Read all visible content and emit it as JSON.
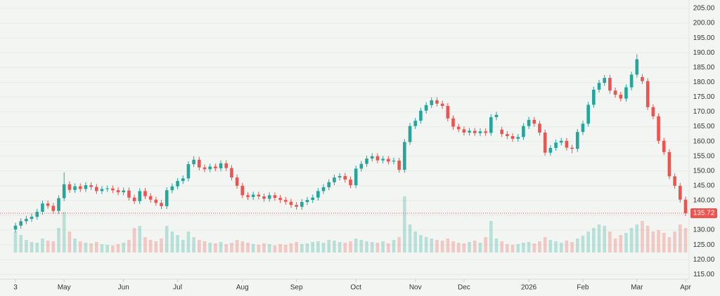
{
  "chart_data": {
    "type": "candlestick",
    "up_color": "#26a69a",
    "down_color": "#ef5350",
    "grid": true,
    "ylim": [
      113.4,
      207.85
    ],
    "yticks": [
      {
        "value": 115,
        "label": "115.00"
      },
      {
        "value": 120,
        "label": "120.00"
      },
      {
        "value": 125,
        "label": "125.00"
      },
      {
        "value": 130,
        "label": "130.00"
      },
      {
        "value": 135,
        "label": "135.00"
      },
      {
        "value": 140,
        "label": "140.00"
      },
      {
        "value": 145,
        "label": "145.00"
      },
      {
        "value": 150,
        "label": "150.00"
      },
      {
        "value": 155,
        "label": "155.00"
      },
      {
        "value": 160,
        "label": "160.00"
      },
      {
        "value": 165,
        "label": "165.00"
      },
      {
        "value": 170,
        "label": "170.00"
      },
      {
        "value": 175,
        "label": "175.00"
      },
      {
        "value": 180,
        "label": "180.00"
      },
      {
        "value": 185,
        "label": "185.00"
      },
      {
        "value": 190,
        "label": "190.00"
      },
      {
        "value": 195,
        "label": "195.00"
      },
      {
        "value": 200,
        "label": "200.00"
      },
      {
        "value": 205,
        "label": "205.00"
      }
    ],
    "vlim": [
      0,
      100
    ],
    "categories": [
      "3",
      null,
      null,
      null,
      null,
      null,
      null,
      null,
      null,
      "May",
      null,
      null,
      null,
      null,
      null,
      null,
      null,
      null,
      null,
      null,
      "Jun",
      null,
      null,
      null,
      null,
      null,
      null,
      null,
      null,
      null,
      "Jul",
      null,
      null,
      null,
      null,
      null,
      null,
      null,
      null,
      null,
      null,
      null,
      "Aug",
      null,
      null,
      null,
      null,
      null,
      null,
      null,
      null,
      null,
      "Sep",
      null,
      null,
      null,
      null,
      null,
      null,
      null,
      null,
      null,
      null,
      "Oct",
      null,
      null,
      null,
      null,
      null,
      null,
      null,
      null,
      null,
      null,
      "Nov",
      null,
      null,
      null,
      null,
      null,
      null,
      null,
      null,
      "Dec",
      null,
      null,
      null,
      null,
      null,
      null,
      null,
      null,
      null,
      null,
      null,
      "2026",
      null,
      null,
      null,
      null,
      null,
      null,
      null,
      null,
      null,
      "Feb",
      null,
      null,
      null,
      null,
      null,
      null,
      null,
      null,
      null,
      "Mar",
      null,
      null,
      null,
      null,
      null,
      null,
      null,
      null,
      "Apr"
    ],
    "candles": [
      [
        130.2,
        132.5,
        129.2,
        131.5
      ],
      [
        131.5,
        134.0,
        130.5,
        133.0
      ],
      [
        133.0,
        134.8,
        132.0,
        133.8
      ],
      [
        133.8,
        135.5,
        132.8,
        134.5
      ],
      [
        134.5,
        137.2,
        133.5,
        136.2
      ],
      [
        136.2,
        140.0,
        135.2,
        139.0
      ],
      [
        139.0,
        140.0,
        137.2,
        138.2
      ],
      [
        138.2,
        139.2,
        135.5,
        136.5
      ],
      [
        136.5,
        141.8,
        135.5,
        140.8
      ],
      [
        140.8,
        149.5,
        139.8,
        145.5
      ],
      [
        145.5,
        146.5,
        142.6,
        143.6
      ],
      [
        143.6,
        145.8,
        142.6,
        144.8
      ],
      [
        144.8,
        145.8,
        142.9,
        143.9
      ],
      [
        143.9,
        146.2,
        142.9,
        145.2
      ],
      [
        145.2,
        146.2,
        143.6,
        144.6
      ],
      [
        144.6,
        145.6,
        142.2,
        143.2
      ],
      [
        143.2,
        144.9,
        142.2,
        143.9
      ],
      [
        143.9,
        145.1,
        142.9,
        144.1
      ],
      [
        144.1,
        145.1,
        142.5,
        143.5
      ],
      [
        143.5,
        144.5,
        141.8,
        142.8
      ],
      [
        142.8,
        144.4,
        141.8,
        143.4
      ],
      [
        143.4,
        144.4,
        140.0,
        141.0
      ],
      [
        141.0,
        142.0,
        138.8,
        139.8
      ],
      [
        139.8,
        144.2,
        138.8,
        143.2
      ],
      [
        143.2,
        144.2,
        140.5,
        141.5
      ],
      [
        141.5,
        142.5,
        139.3,
        140.3
      ],
      [
        140.3,
        141.3,
        138.2,
        139.2
      ],
      [
        139.2,
        140.2,
        137.1,
        138.1
      ],
      [
        138.1,
        144.5,
        137.1,
        143.5
      ],
      [
        143.5,
        145.8,
        142.5,
        144.8
      ],
      [
        144.8,
        147.6,
        143.8,
        146.6
      ],
      [
        146.6,
        148.5,
        145.6,
        147.5
      ],
      [
        147.5,
        153.3,
        146.5,
        152.3
      ],
      [
        152.3,
        155.0,
        151.3,
        153.8
      ],
      [
        153.8,
        154.8,
        150.2,
        151.2
      ],
      [
        151.2,
        152.2,
        149.6,
        150.6
      ],
      [
        150.6,
        152.5,
        149.6,
        151.5
      ],
      [
        151.5,
        152.5,
        149.9,
        150.9
      ],
      [
        150.9,
        153.6,
        149.9,
        152.6
      ],
      [
        152.6,
        153.6,
        150.0,
        151.0
      ],
      [
        151.0,
        152.0,
        146.8,
        147.8
      ],
      [
        147.8,
        148.8,
        144.0,
        145.0
      ],
      [
        145.0,
        146.0,
        140.8,
        141.8
      ],
      [
        141.8,
        142.8,
        140.2,
        141.2
      ],
      [
        141.2,
        143.0,
        140.2,
        142.0
      ],
      [
        142.0,
        143.0,
        140.4,
        141.4
      ],
      [
        141.4,
        142.4,
        139.6,
        140.6
      ],
      [
        140.6,
        142.8,
        139.6,
        141.8
      ],
      [
        141.8,
        142.8,
        139.9,
        140.9
      ],
      [
        140.9,
        141.9,
        139.2,
        140.2
      ],
      [
        140.2,
        141.2,
        138.6,
        139.6
      ],
      [
        139.6,
        140.6,
        137.5,
        138.5
      ],
      [
        138.5,
        139.5,
        136.9,
        137.9
      ],
      [
        137.9,
        140.5,
        136.9,
        139.5
      ],
      [
        139.5,
        141.2,
        138.5,
        140.2
      ],
      [
        140.2,
        142.0,
        139.2,
        141.0
      ],
      [
        141.0,
        144.2,
        140.0,
        143.2
      ],
      [
        143.2,
        145.5,
        142.2,
        144.5
      ],
      [
        144.5,
        147.2,
        143.5,
        146.2
      ],
      [
        146.2,
        148.8,
        145.2,
        147.8
      ],
      [
        147.8,
        149.3,
        146.8,
        148.3
      ],
      [
        148.3,
        149.3,
        146.1,
        147.1
      ],
      [
        147.1,
        148.1,
        144.2,
        145.2
      ],
      [
        145.2,
        151.8,
        144.2,
        150.8
      ],
      [
        150.8,
        153.4,
        149.8,
        152.4
      ],
      [
        152.4,
        155.2,
        151.4,
        154.2
      ],
      [
        154.2,
        156.0,
        153.2,
        155.0
      ],
      [
        155.0,
        156.0,
        152.6,
        153.6
      ],
      [
        153.6,
        155.1,
        152.6,
        154.1
      ],
      [
        154.1,
        155.1,
        152.2,
        153.2
      ],
      [
        153.2,
        154.5,
        152.2,
        153.5
      ],
      [
        153.5,
        154.5,
        149.4,
        150.4
      ],
      [
        150.4,
        160.8,
        149.4,
        159.8
      ],
      [
        159.8,
        166.2,
        158.8,
        165.2
      ],
      [
        165.2,
        168.0,
        164.2,
        167.0
      ],
      [
        167.0,
        171.4,
        166.0,
        170.4
      ],
      [
        170.4,
        173.3,
        169.4,
        172.3
      ],
      [
        172.3,
        174.9,
        171.3,
        173.9
      ],
      [
        173.9,
        174.9,
        171.8,
        172.8
      ],
      [
        172.8,
        173.8,
        171.0,
        172.0
      ],
      [
        172.0,
        173.0,
        166.8,
        167.8
      ],
      [
        167.8,
        168.8,
        164.0,
        165.0
      ],
      [
        165.0,
        166.0,
        163.1,
        164.1
      ],
      [
        164.1,
        165.1,
        162.0,
        163.0
      ],
      [
        163.0,
        164.6,
        162.0,
        163.6
      ],
      [
        163.6,
        164.6,
        161.8,
        162.8
      ],
      [
        162.8,
        164.4,
        161.8,
        163.4
      ],
      [
        163.4,
        164.4,
        161.9,
        162.9
      ],
      [
        162.9,
        169.2,
        161.9,
        168.2
      ],
      [
        168.2,
        170.0,
        167.2,
        169.0
      ],
      [
        164.0,
        165.0,
        161.5,
        162.5
      ],
      [
        162.5,
        163.5,
        160.8,
        161.8
      ],
      [
        161.8,
        162.8,
        159.9,
        160.9
      ],
      [
        160.9,
        162.5,
        159.9,
        161.5
      ],
      [
        161.5,
        166.2,
        160.5,
        165.2
      ],
      [
        165.2,
        168.3,
        164.2,
        167.3
      ],
      [
        167.3,
        168.3,
        165.0,
        166.0
      ],
      [
        166.0,
        167.0,
        162.0,
        163.0
      ],
      [
        163.0,
        164.0,
        155.2,
        156.2
      ],
      [
        156.2,
        158.8,
        155.2,
        157.8
      ],
      [
        157.8,
        160.6,
        156.8,
        159.6
      ],
      [
        159.6,
        161.2,
        158.6,
        160.2
      ],
      [
        160.2,
        161.2,
        156.9,
        157.9
      ],
      [
        157.9,
        158.9,
        156.0,
        157.5
      ],
      [
        157.5,
        164.2,
        156.5,
        163.2
      ],
      [
        163.2,
        167.0,
        162.2,
        166.0
      ],
      [
        166.0,
        173.4,
        165.0,
        172.4
      ],
      [
        172.4,
        178.5,
        171.4,
        177.5
      ],
      [
        177.5,
        180.8,
        176.5,
        179.8
      ],
      [
        179.8,
        182.5,
        178.8,
        181.5
      ],
      [
        181.5,
        182.5,
        176.2,
        177.2
      ],
      [
        177.2,
        178.2,
        174.8,
        175.8
      ],
      [
        175.8,
        176.8,
        173.5,
        174.5
      ],
      [
        174.5,
        179.3,
        173.5,
        178.3
      ],
      [
        178.3,
        183.6,
        177.3,
        182.6
      ],
      [
        182.6,
        189.5,
        181.6,
        187.8
      ],
      [
        181.8,
        182.8,
        179.4,
        180.4
      ],
      [
        180.4,
        181.4,
        170.6,
        171.6
      ],
      [
        171.6,
        172.6,
        167.5,
        168.5
      ],
      [
        168.5,
        169.5,
        159.2,
        160.2
      ],
      [
        160.2,
        161.2,
        155.4,
        156.4
      ],
      [
        156.4,
        157.4,
        147.2,
        148.2
      ],
      [
        148.2,
        149.2,
        144.0,
        145.0
      ],
      [
        145.0,
        146.0,
        139.3,
        140.3
      ],
      [
        140.3,
        141.3,
        134.8,
        135.72
      ]
    ],
    "volume": [
      30,
      25,
      18,
      15,
      14,
      20,
      17,
      16,
      35,
      58,
      30,
      20,
      16,
      14,
      13,
      15,
      12,
      11,
      10,
      12,
      14,
      18,
      35,
      38,
      22,
      18,
      16,
      20,
      38,
      30,
      25,
      18,
      30,
      22,
      18,
      16,
      14,
      13,
      15,
      12,
      14,
      18,
      16,
      14,
      12,
      11,
      13,
      12,
      10,
      12,
      11,
      13,
      15,
      12,
      13,
      15,
      16,
      14,
      18,
      17,
      15,
      14,
      16,
      20,
      18,
      16,
      15,
      14,
      16,
      13,
      18,
      22,
      80,
      40,
      30,
      25,
      22,
      20,
      18,
      17,
      20,
      16,
      14,
      13,
      15,
      17,
      14,
      22,
      45,
      20,
      16,
      12,
      11,
      12,
      14,
      15,
      13,
      16,
      22,
      18,
      16,
      14,
      17,
      15,
      20,
      24,
      30,
      35,
      40,
      38,
      30,
      20,
      25,
      28,
      35,
      40,
      45,
      38,
      30,
      32,
      28,
      22,
      30,
      40,
      35
    ]
  }
}
